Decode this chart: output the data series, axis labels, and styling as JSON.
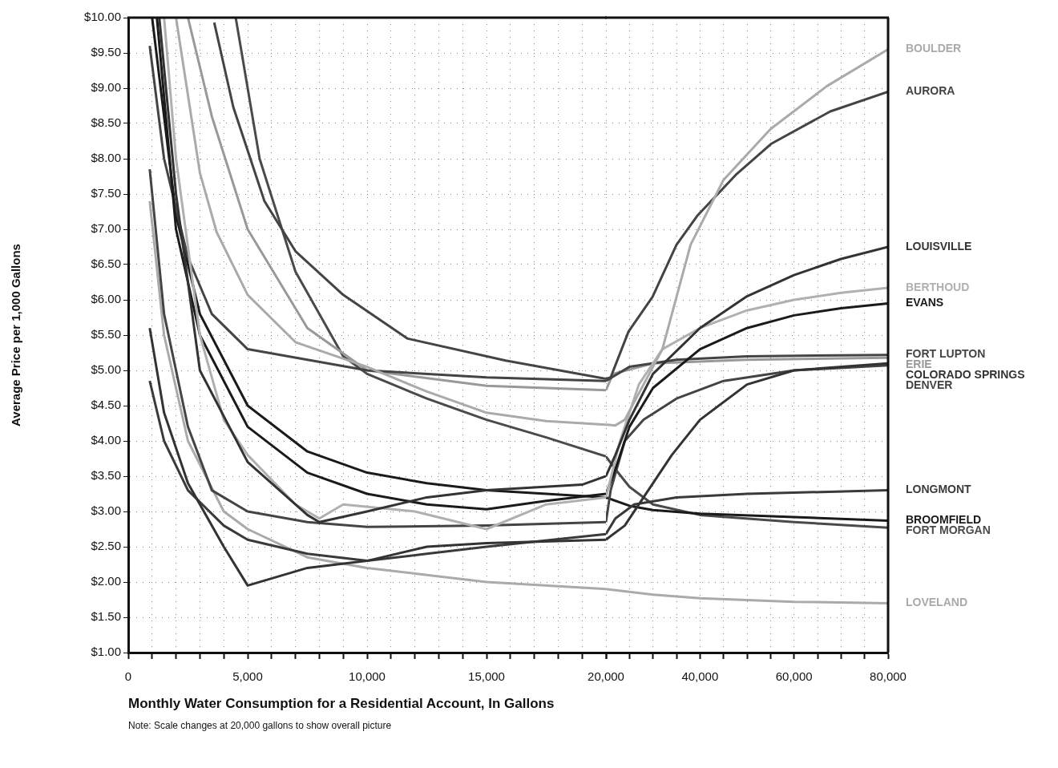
{
  "chart_data": [
    {
      "type": "line",
      "ylabel": "Average Price per 1,000 Gallons",
      "xlabel": "Monthly Water Consumption for a Residential Account, In Gallons",
      "annotations": [
        "Note: Scale changes at 20,000 gallons to show overall picture"
      ],
      "xlim": [
        0,
        20000
      ],
      "ylim": [
        1,
        10
      ],
      "marker": "none",
      "grid": true,
      "legend": false,
      "xticks": [
        0,
        {
          "value": 1000,
          "label": null
        },
        {
          "value": 2000,
          "label": null
        },
        {
          "value": 3000,
          "label": null
        },
        {
          "value": 4000,
          "label": null
        },
        {
          "value": 5000,
          "label": "5,000"
        },
        {
          "value": 6000,
          "label": null
        },
        {
          "value": 7000,
          "label": null
        },
        {
          "value": 8000,
          "label": null
        },
        {
          "value": 9000,
          "label": null
        },
        {
          "value": 10000,
          "label": "10,000"
        },
        {
          "value": 11000,
          "label": null
        },
        {
          "value": 12000,
          "label": null
        },
        {
          "value": 13000,
          "label": null
        },
        {
          "value": 14000,
          "label": null
        },
        {
          "value": 15000,
          "label": "15,000"
        },
        {
          "value": 16000,
          "label": null
        },
        {
          "value": 17000,
          "label": null
        },
        {
          "value": 18000,
          "label": null
        },
        {
          "value": 19000,
          "label": null
        },
        {
          "value": 20000,
          "label": "20,000"
        }
      ],
      "yticks": [
        {
          "value": 1,
          "label": "$1.00"
        },
        {
          "value": 1.5,
          "label": "$1.50"
        },
        {
          "value": 2,
          "label": "$2.00"
        },
        {
          "value": 2.5,
          "label": "$2.50"
        },
        {
          "value": 3,
          "label": "$3.00"
        },
        {
          "value": 3.5,
          "label": "$3.50"
        },
        {
          "value": 4,
          "label": "$4.00"
        },
        {
          "value": 4.5,
          "label": "$4.50"
        },
        {
          "value": 5,
          "label": "$5.00"
        },
        {
          "value": 5.5,
          "label": "$5.50"
        },
        {
          "value": 6,
          "label": "$6.00"
        },
        {
          "value": 6.5,
          "label": "$6.50"
        },
        {
          "value": 7,
          "label": "$7.00"
        },
        {
          "value": 7.5,
          "label": "$7.50"
        },
        {
          "value": 8,
          "label": "$8.00"
        },
        {
          "value": 8.5,
          "label": "$8.50"
        },
        {
          "value": 9,
          "label": "$9.00"
        },
        {
          "value": 9.5,
          "label": "$9.50"
        },
        {
          "value": 10,
          "label": "$10.00"
        }
      ],
      "series": [
        {
          "color": "#aaaaaa",
          "x": [
            2000,
            3000,
            3700,
            5000,
            7000,
            10000,
            12500,
            15000,
            17500,
            20000
          ],
          "values": [
            10,
            7.8,
            6.96,
            6.07,
            5.4,
            5.05,
            4.7,
            4.4,
            4.28,
            4.23
          ]
        },
        {
          "color": "#444444",
          "x": [
            3600,
            4400,
            5700,
            7000,
            9000,
            11700,
            15800,
            20000
          ],
          "values": [
            9.93,
            8.73,
            7.4,
            6.69,
            6.07,
            5.45,
            5.14,
            4.88
          ]
        },
        {
          "color": "#333333",
          "x": [
            1300,
            2000,
            3000,
            5000,
            7500,
            8000,
            10000,
            12500,
            15000,
            19000,
            20000
          ],
          "values": [
            10,
            7.5,
            5,
            3.7,
            2.95,
            2.85,
            3,
            3.2,
            3.3,
            3.38,
            3.5
          ]
        },
        {
          "color": "#b0b0b0",
          "x": [
            1500,
            2000,
            3000,
            4000,
            5000,
            7000,
            8000,
            9000,
            12000,
            15000,
            17500,
            20000
          ],
          "values": [
            10,
            8,
            5.5,
            4.3,
            3.8,
            3.1,
            2.9,
            3.1,
            3,
            2.75,
            3.1,
            3.2
          ]
        },
        {
          "color": "#1a1a1a",
          "x": [
            1200,
            2000,
            3000,
            5000,
            7500,
            10000,
            12500,
            15000,
            17500,
            20000
          ],
          "values": [
            10,
            7,
            5.5,
            4.2,
            3.55,
            3.25,
            3.1,
            3.03,
            3.15,
            3.25
          ]
        },
        {
          "color": "#444444",
          "x": [
            900,
            1500,
            2500,
            3500,
            5000,
            10000,
            15000,
            20000
          ],
          "values": [
            9.6,
            8,
            6.6,
            5.8,
            5.3,
            5,
            4.9,
            4.85
          ]
        },
        {
          "color": "#999999",
          "x": [
            2500,
            3500,
            5000,
            7500,
            10000,
            15000,
            20000
          ],
          "values": [
            10,
            8.6,
            7,
            5.6,
            5,
            4.78,
            4.72
          ]
        },
        {
          "color": "#333333",
          "x": [
            900,
            1500,
            2500,
            4000,
            5000,
            7500,
            10000,
            12500,
            15000,
            20000
          ],
          "values": [
            5.6,
            4.4,
            3.4,
            2.5,
            1.95,
            2.2,
            2.3,
            2.5,
            2.55,
            2.6
          ]
        },
        {
          "color": "#444444",
          "x": [
            900,
            1500,
            2500,
            3500,
            5000,
            7500,
            10000,
            15000,
            20000
          ],
          "values": [
            7.85,
            5.8,
            4.2,
            3.3,
            3,
            2.85,
            2.78,
            2.8,
            2.85
          ]
        },
        {
          "color": "#3a3a3a",
          "x": [
            900,
            1500,
            2500,
            4000,
            5000,
            7500,
            10000,
            12500,
            15000,
            20000
          ],
          "values": [
            4.85,
            4,
            3.3,
            2.8,
            2.6,
            2.4,
            2.3,
            2.4,
            2.5,
            2.68
          ]
        },
        {
          "color": "#1a1a1a",
          "x": [
            1000,
            2000,
            3000,
            5000,
            7500,
            10000,
            12500,
            15000,
            17500,
            20000
          ],
          "values": [
            10,
            7.2,
            5.8,
            4.5,
            3.85,
            3.55,
            3.4,
            3.3,
            3.25,
            3.2
          ]
        },
        {
          "color": "#4a4a4a",
          "x": [
            4500,
            5500,
            7000,
            9000,
            10000,
            12500,
            15000,
            17500,
            20000
          ],
          "values": [
            10,
            8,
            6.4,
            5.2,
            4.95,
            4.6,
            4.3,
            4.05,
            3.78
          ]
        },
        {
          "color": "#aaaaaa",
          "x": [
            900,
            1500,
            2500,
            4000,
            5000,
            7500,
            10000,
            12500,
            15000,
            20000
          ],
          "values": [
            7.4,
            5.5,
            4,
            3,
            2.75,
            2.35,
            2.2,
            2.1,
            2,
            1.9
          ]
        }
      ]
    },
    {
      "type": "line",
      "xlim": [
        20000,
        80000
      ],
      "ylim": [
        1,
        10
      ],
      "tick_labels": "x",
      "marker": "none",
      "grid": true,
      "legend": false,
      "xticks": [
        {
          "value": 20000,
          "label": null
        },
        {
          "value": 25000,
          "label": null
        },
        {
          "value": 30000,
          "label": null
        },
        {
          "value": 35000,
          "label": null
        },
        {
          "value": 40000,
          "label": "40,000"
        },
        {
          "value": 45000,
          "label": null
        },
        {
          "value": 50000,
          "label": null
        },
        {
          "value": 55000,
          "label": null
        },
        {
          "value": 60000,
          "label": "60,000"
        },
        {
          "value": 65000,
          "label": null
        },
        {
          "value": 70000,
          "label": null
        },
        {
          "value": 75000,
          "label": null
        },
        {
          "value": 80000,
          "label": "80,000"
        }
      ],
      "yticks": [
        {
          "value": 1,
          "label": null
        },
        {
          "value": 1.5,
          "label": null
        },
        {
          "value": 2,
          "label": null
        },
        {
          "value": 2.5,
          "label": null
        },
        {
          "value": 3,
          "label": null
        },
        {
          "value": 3.5,
          "label": null
        },
        {
          "value": 4,
          "label": null
        },
        {
          "value": 4.5,
          "label": null
        },
        {
          "value": 5,
          "label": null
        },
        {
          "value": 5.5,
          "label": null
        },
        {
          "value": 6,
          "label": null
        },
        {
          "value": 6.5,
          "label": null
        },
        {
          "value": 7,
          "label": null
        },
        {
          "value": 7.5,
          "label": null
        },
        {
          "value": 8,
          "label": null
        },
        {
          "value": 8.5,
          "label": null
        },
        {
          "value": 9,
          "label": null
        },
        {
          "value": 9.5,
          "label": null
        },
        {
          "value": 10,
          "label": null
        }
      ],
      "series": [
        {
          "name": "BOULDER",
          "color": "#aaaaaa",
          "x": [
            20000,
            22000,
            24000,
            28000,
            32000,
            38000,
            45000,
            55000,
            67000,
            80000
          ],
          "values": [
            4.23,
            4.22,
            4.3,
            4.8,
            5.3,
            6.78,
            7.7,
            8.42,
            9.03,
            9.55
          ]
        },
        {
          "name": "AURORA",
          "color": "#444444",
          "x": [
            20000,
            21000,
            24800,
            29900,
            35000,
            39400,
            47600,
            55100,
            67700,
            80000
          ],
          "values": [
            4.88,
            4.9,
            5.55,
            6.04,
            6.78,
            7.19,
            7.77,
            8.21,
            8.67,
            8.95
          ]
        },
        {
          "name": "LOUISVILLE",
          "color": "#333333",
          "x": [
            20000,
            22000,
            25000,
            30000,
            40000,
            50000,
            60000,
            70000,
            80000
          ],
          "values": [
            3.5,
            3.8,
            4.3,
            4.95,
            5.6,
            6.05,
            6.35,
            6.58,
            6.75
          ]
        },
        {
          "name": "BERTHOUD",
          "color": "#b0b0b0",
          "x": [
            20000,
            23000,
            27000,
            32000,
            40000,
            50000,
            60000,
            70000,
            80000
          ],
          "values": [
            3.2,
            4,
            4.8,
            5.3,
            5.6,
            5.85,
            6,
            6.1,
            6.17
          ]
        },
        {
          "name": "EVANS",
          "color": "#1a1a1a",
          "x": [
            20000,
            22000,
            25000,
            30000,
            40000,
            50000,
            60000,
            70000,
            80000
          ],
          "values": [
            3.25,
            3.6,
            4.2,
            4.75,
            5.3,
            5.6,
            5.78,
            5.88,
            5.95
          ]
        },
        {
          "name": "FORT LUPTON",
          "color": "#444444",
          "x": [
            20000,
            25000,
            35000,
            50000,
            80000
          ],
          "values": [
            4.85,
            5.05,
            5.15,
            5.2,
            5.22
          ]
        },
        {
          "name": "ERIE",
          "color": "#999999",
          "x": [
            20000,
            21500,
            30000,
            50000,
            80000
          ],
          "values": [
            4.72,
            4.95,
            5.1,
            5.15,
            5.18
          ]
        },
        {
          "name": "COLORADO SPRINGS",
          "color": "#333333",
          "x": [
            20000,
            24000,
            28000,
            34000,
            40000,
            50000,
            60000,
            80000
          ],
          "values": [
            2.6,
            2.8,
            3.2,
            3.8,
            4.3,
            4.8,
            5,
            5.1
          ]
        },
        {
          "name": "DENVER",
          "color": "#444444",
          "x": [
            20000,
            21000,
            24000,
            28000,
            35000,
            45000,
            60000,
            80000
          ],
          "values": [
            2.85,
            3.3,
            4,
            4.3,
            4.6,
            4.85,
            5,
            5.07
          ]
        },
        {
          "name": "LONGMONT",
          "color": "#3a3a3a",
          "x": [
            20000,
            22000,
            26000,
            35000,
            50000,
            80000
          ],
          "values": [
            2.68,
            2.9,
            3.1,
            3.2,
            3.25,
            3.3
          ]
        },
        {
          "name": "BROOMFIELD",
          "color": "#1a1a1a",
          "x": [
            20000,
            25000,
            30000,
            40000,
            60000,
            80000
          ],
          "values": [
            3.2,
            3.08,
            3.02,
            2.97,
            2.92,
            2.87
          ]
        },
        {
          "name": "FORT MORGAN",
          "color": "#4a4a4a",
          "x": [
            20000,
            22000,
            25000,
            30000,
            40000,
            60000,
            80000
          ],
          "values": [
            3.78,
            3.6,
            3.35,
            3.1,
            2.95,
            2.85,
            2.77
          ]
        },
        {
          "name": "LOVELAND",
          "color": "#aaaaaa",
          "x": [
            20000,
            30000,
            40000,
            60000,
            80000
          ],
          "values": [
            1.9,
            1.82,
            1.77,
            1.72,
            1.7
          ]
        }
      ]
    }
  ]
}
